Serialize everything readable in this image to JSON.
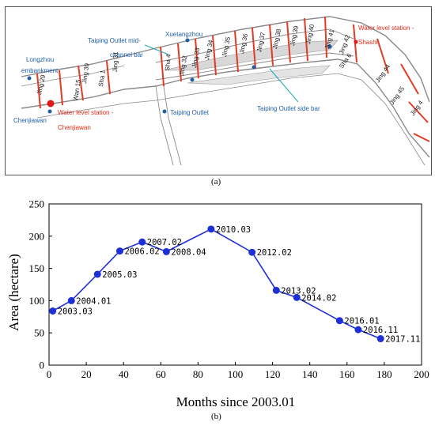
{
  "panel_a": {
    "caption": "(a)",
    "labels": {
      "longzhou": "Longzhou",
      "embankment": "embankment",
      "chenjiawan": "Chenjiawan",
      "wl_chenjiawan_1": "Water    level    station    -",
      "wl_chenjiawan_2": "Chenjiawan",
      "midchannel_1": "Taiping Outlet mid-",
      "midchannel_2": "channel bar",
      "xuetangzhou": "Xuetangzhou",
      "taiping_outlet": "Taiping Outlet",
      "side_bar": "Taiping Outlet side bar",
      "wl_shashi_1": "Water level station -",
      "wl_shashi_2": "Shashi"
    },
    "sections": [
      "Jing 29",
      "Wan 15",
      "Jing 30",
      "Sha 1",
      "Jing 31",
      "Sha 4",
      "Jing 32",
      "Jing 33",
      "Jing 34",
      "Jing 35",
      "Jing 36",
      "Jing 37",
      "Jing 38",
      "Jing 39",
      "Jing 40",
      "Jing 41",
      "Jing 42",
      "Sha 6",
      "Jing 44",
      "Jing 45",
      "Jing 4"
    ],
    "colors": {
      "section_line": "#e23b22",
      "label_blue": "#1f5fa8",
      "label_red": "#e02a1a",
      "station_dot": "#e0161a",
      "river_line": "#888888"
    }
  },
  "panel_b": {
    "caption": "(b)"
  },
  "chart_data": {
    "type": "line",
    "xlabel": "Months since 2003.01",
    "ylabel": "Area (hectare)",
    "xlim": [
      0,
      200
    ],
    "ylim": [
      0,
      250
    ],
    "xticks": [
      0,
      20,
      40,
      60,
      80,
      100,
      120,
      140,
      160,
      180,
      200
    ],
    "yticks": [
      0,
      50,
      100,
      150,
      200,
      250
    ],
    "grid": false,
    "color": "#1f2fd6",
    "series": [
      {
        "x": [
          2,
          12,
          26,
          38,
          50,
          63,
          87,
          109,
          122,
          133,
          156,
          166,
          178
        ],
        "y": [
          84,
          100,
          141,
          177,
          191,
          176,
          211,
          175,
          116,
          105,
          69,
          55,
          41
        ],
        "labels": [
          "2003.03",
          "2004.01",
          "2005.03",
          "2006.02",
          "2007.02",
          "2008.04",
          "2010.03",
          "2012.02",
          "2013.02",
          "2014.02",
          "2016.01",
          "2016.11",
          "2017.11"
        ]
      }
    ]
  }
}
